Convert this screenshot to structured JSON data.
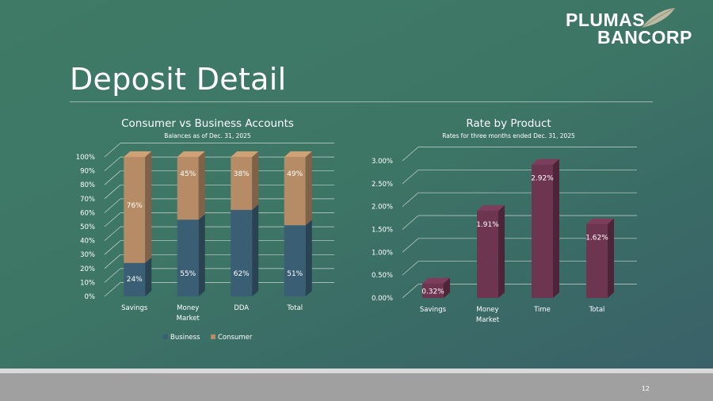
{
  "logo": {
    "line1": "PLUMAS",
    "line2": "BANCORP"
  },
  "page": {
    "title": "Deposit Detail",
    "number": "12"
  },
  "colors": {
    "business": "#3a5f75",
    "consumer": "#b58c66",
    "rate": "#6e3550",
    "grid": "#c8d6d0",
    "text": "#ffffff"
  },
  "chart_data": [
    {
      "type": "bar",
      "stacked": true,
      "title": "Consumer vs Business Accounts",
      "subtitle": "Balances as of Dec. 31, 2025",
      "categories": [
        [
          "Savings"
        ],
        [
          "Money",
          "Market"
        ],
        [
          "DDA"
        ],
        [
          "Total"
        ]
      ],
      "series": [
        {
          "name": "Business",
          "values": [
            24,
            55,
            62,
            51
          ],
          "labels": [
            "24%",
            "55%",
            "62%",
            "51%"
          ]
        },
        {
          "name": "Consumer",
          "values": [
            76,
            45,
            38,
            49
          ],
          "labels": [
            "76%",
            "45%",
            "38%",
            "49%"
          ]
        }
      ],
      "yticks": [
        "0%",
        "10%",
        "20%",
        "30%",
        "40%",
        "50%",
        "60%",
        "70%",
        "80%",
        "90%",
        "100%"
      ],
      "ylim": [
        0,
        100
      ],
      "legend": "bottom",
      "grid": true
    },
    {
      "type": "bar",
      "title": "Rate by Product",
      "subtitle": "Rates for three months ended Dec. 31, 2025",
      "categories": [
        [
          "Savings"
        ],
        [
          "Money",
          "Market"
        ],
        [
          "Time"
        ],
        [
          "Total"
        ]
      ],
      "series": [
        {
          "name": "Rate",
          "values": [
            0.32,
            1.91,
            2.92,
            1.62
          ],
          "labels": [
            "0.32%",
            "1.91%",
            "2.92%",
            "1.62%"
          ]
        }
      ],
      "yticks": [
        "0.00%",
        "0.50%",
        "1.00%",
        "1.50%",
        "2.00%",
        "2.50%",
        "3.00%"
      ],
      "ylim": [
        0,
        3
      ],
      "grid": true
    }
  ]
}
